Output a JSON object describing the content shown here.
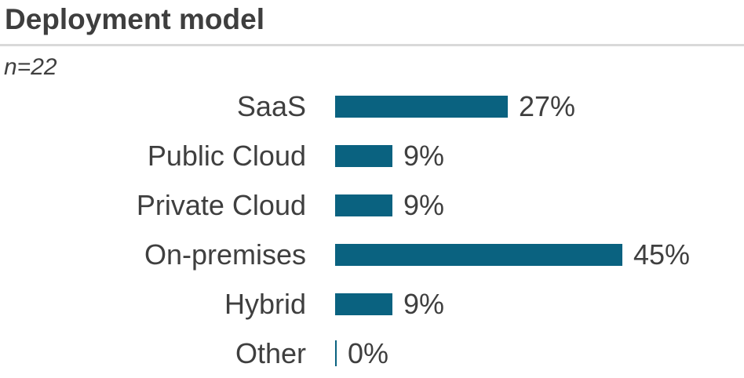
{
  "header": {
    "title": "Deployment model",
    "sample_size": "n=22"
  },
  "chart_data": {
    "type": "bar",
    "orientation": "horizontal",
    "title": "Deployment model",
    "subtitle": "n=22",
    "n": 22,
    "categories": [
      "SaaS",
      "Public Cloud",
      "Private Cloud",
      "On-premises",
      "Hybrid",
      "Other"
    ],
    "values": [
      27,
      9,
      9,
      45,
      9,
      0
    ],
    "value_labels": [
      "27%",
      "9%",
      "9%",
      "45%",
      "9%",
      "0%"
    ],
    "unit": "%",
    "xlim": [
      0,
      50
    ],
    "grid": false,
    "legend": false,
    "bar_color": "#0a6280",
    "text_color": "#3f3f3f",
    "rule_color": "#d9d9d9"
  }
}
